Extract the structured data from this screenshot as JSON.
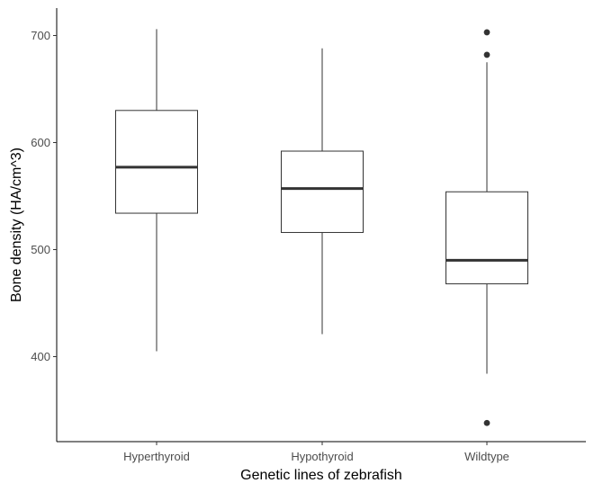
{
  "chart_data": {
    "type": "boxplot",
    "xlabel": "Genetic lines of zebrafish",
    "ylabel": "Bone density (HA/cm^3)",
    "ylim": [
      320,
      725
    ],
    "yticks": [
      400,
      500,
      600,
      700
    ],
    "ytick_labels": [
      "400",
      "500",
      "600",
      "700"
    ],
    "grid": false,
    "categories": [
      "Hyperthyroid",
      "Hypothyroid",
      "Wildtype"
    ],
    "boxes": [
      {
        "category": "Hyperthyroid",
        "whisker_low": 405,
        "q1": 534,
        "median": 577,
        "q3": 630,
        "whisker_high": 706,
        "outliers": []
      },
      {
        "category": "Hypothyroid",
        "whisker_low": 421,
        "q1": 516,
        "median": 557,
        "q3": 592,
        "whisker_high": 688,
        "outliers": []
      },
      {
        "category": "Wildtype",
        "whisker_low": 384,
        "q1": 468,
        "median": 490,
        "q3": 554,
        "whisker_high": 675,
        "outliers": [
          338,
          682,
          703
        ]
      }
    ]
  }
}
